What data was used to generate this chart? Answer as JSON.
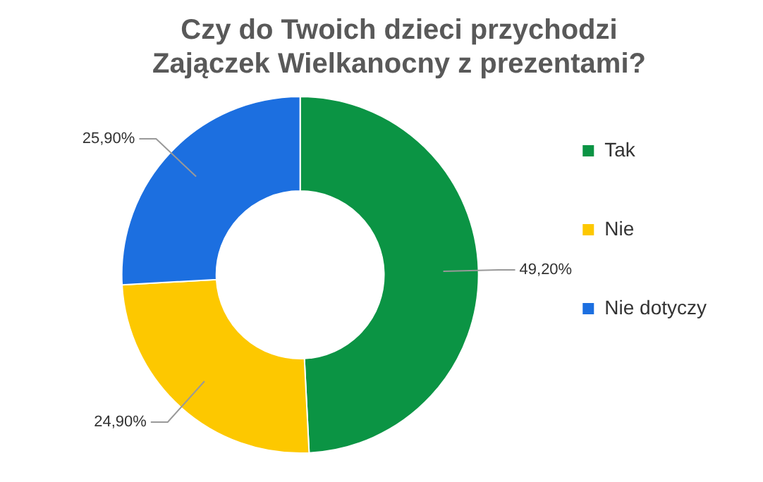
{
  "chart_data": {
    "type": "donut",
    "title": "Czy do Twoich dzieci przychodzi\nZajączek Wielkanocny z prezentami?",
    "categories": [
      "Tak",
      "Nie",
      "Nie dotyczy"
    ],
    "values": [
      49.2,
      24.9,
      25.9
    ],
    "colors": [
      "#0b9444",
      "#fdc800",
      "#1c6fe0"
    ],
    "value_labels": [
      "49,20%",
      "24,90%",
      "25,90%"
    ],
    "legend": "right"
  }
}
